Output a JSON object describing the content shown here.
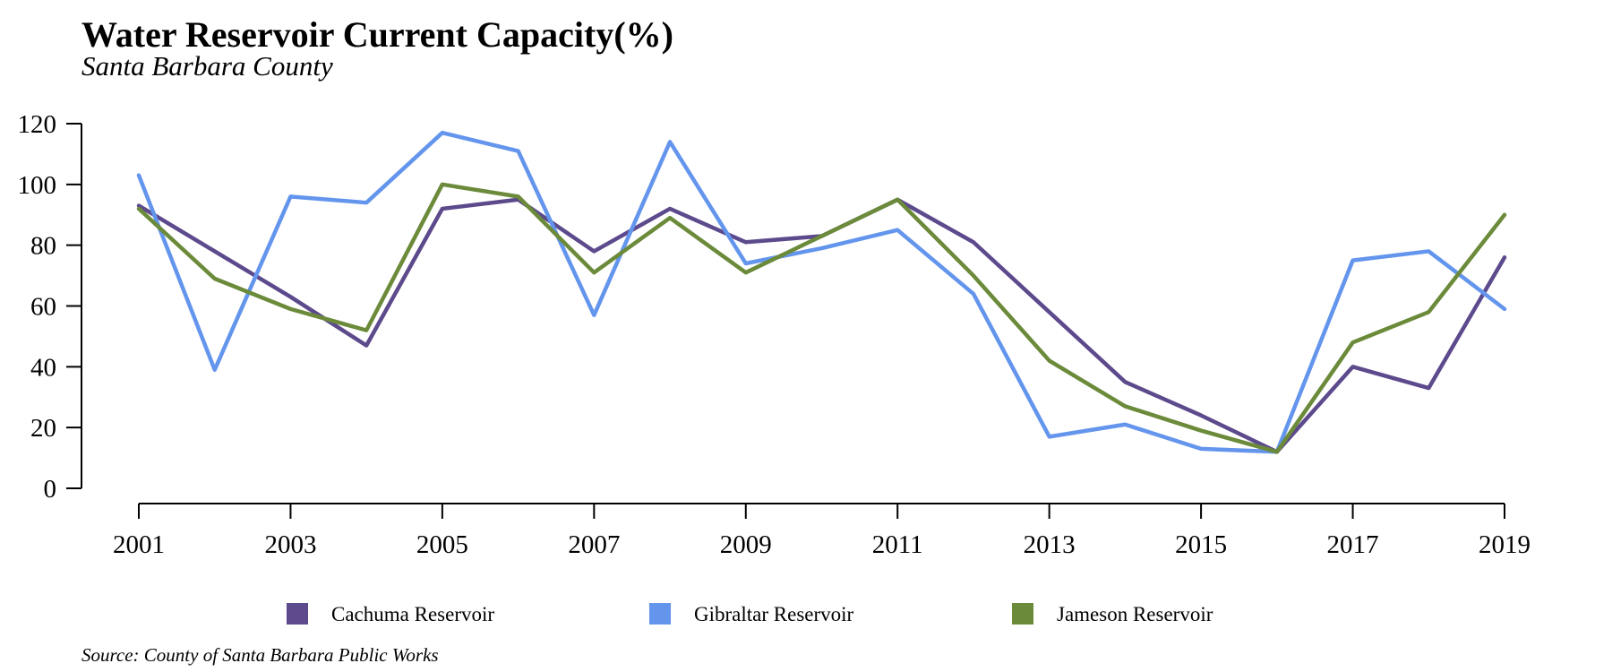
{
  "chart_data": {
    "type": "line",
    "title": "Water Reservoir Current Capacity(%)",
    "subtitle": "Santa Barbara County",
    "source": "Source: County of Santa Barbara Public Works",
    "xlabel": "",
    "ylabel": "",
    "x": [
      2001,
      2002,
      2003,
      2004,
      2005,
      2006,
      2007,
      2008,
      2009,
      2010,
      2011,
      2012,
      2013,
      2014,
      2015,
      2016,
      2017,
      2018,
      2019
    ],
    "x_tick_labels": [
      "2001",
      "2003",
      "2005",
      "2007",
      "2009",
      "2011",
      "2013",
      "2015",
      "2017",
      "2019"
    ],
    "y_tick_labels": [
      "0",
      "20",
      "40",
      "60",
      "80",
      "100",
      "120"
    ],
    "ylim": [
      0,
      120
    ],
    "xlim": [
      2001,
      2019
    ],
    "grid": false,
    "legend_position": "bottom",
    "series": [
      {
        "name": "Cachuma Reservoir",
        "color": "#5c4a8c",
        "values": [
          93,
          78,
          63,
          47,
          92,
          95,
          78,
          92,
          81,
          83,
          95,
          81,
          58,
          35,
          24,
          12,
          40,
          33,
          76
        ]
      },
      {
        "name": "Gibraltar Reservoir",
        "color": "#6495ed",
        "values": [
          103,
          39,
          96,
          94,
          117,
          111,
          57,
          114,
          74,
          79,
          85,
          64,
          17,
          21,
          13,
          12,
          75,
          78,
          59
        ]
      },
      {
        "name": "Jameson Reservoir",
        "color": "#6b8a3a",
        "values": [
          92,
          69,
          59,
          52,
          100,
          96,
          71,
          89,
          71,
          83,
          95,
          70,
          42,
          27,
          19,
          12,
          48,
          58,
          90
        ]
      }
    ]
  }
}
